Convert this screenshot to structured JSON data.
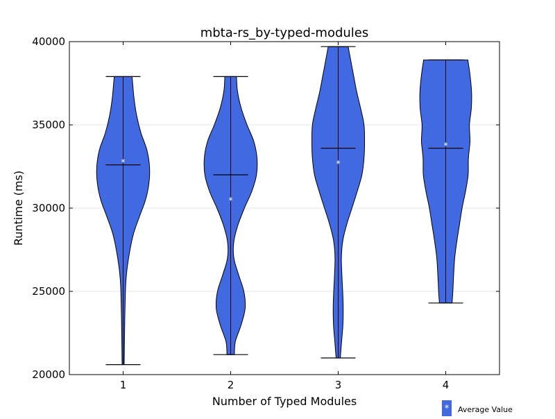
{
  "chart_data": {
    "type": "violin",
    "title": "mbta-rs_by-typed-modules",
    "xlabel": "Number of Typed Modules",
    "ylabel": "Runtime (ms)",
    "ylim": [
      20000,
      40000
    ],
    "yticks": [
      20000,
      25000,
      30000,
      35000,
      40000
    ],
    "grid": "horizontal",
    "categories": [
      "1",
      "2",
      "3",
      "4"
    ],
    "fill_color": "#4169e1",
    "edge_color": "#000000",
    "legend": {
      "label": "Average Value",
      "marker": "*",
      "placement": "bottom-right, outside plot"
    },
    "violins": [
      {
        "category": "1",
        "min": 20600,
        "max": 37900,
        "median": 32600,
        "mean": 32800,
        "density": [
          [
            20600,
            0.04
          ],
          [
            22000,
            0.05
          ],
          [
            24000,
            0.07
          ],
          [
            25500,
            0.1
          ],
          [
            26500,
            0.16
          ],
          [
            27500,
            0.26
          ],
          [
            28500,
            0.4
          ],
          [
            29500,
            0.62
          ],
          [
            30500,
            0.85
          ],
          [
            31500,
            0.98
          ],
          [
            32500,
            1.0
          ],
          [
            33500,
            0.9
          ],
          [
            34500,
            0.68
          ],
          [
            35500,
            0.52
          ],
          [
            36500,
            0.42
          ],
          [
            37500,
            0.36
          ],
          [
            37900,
            0.34
          ]
        ]
      },
      {
        "category": "2",
        "min": 21200,
        "max": 37900,
        "median": 32000,
        "mean": 30500,
        "density": [
          [
            21200,
            0.14
          ],
          [
            22000,
            0.18
          ],
          [
            23000,
            0.4
          ],
          [
            24000,
            0.55
          ],
          [
            25000,
            0.5
          ],
          [
            26000,
            0.3
          ],
          [
            27000,
            0.12
          ],
          [
            28000,
            0.12
          ],
          [
            29000,
            0.28
          ],
          [
            30000,
            0.52
          ],
          [
            31000,
            0.8
          ],
          [
            32000,
            0.98
          ],
          [
            33000,
            1.0
          ],
          [
            34000,
            0.88
          ],
          [
            35000,
            0.62
          ],
          [
            36000,
            0.4
          ],
          [
            37000,
            0.26
          ],
          [
            37900,
            0.22
          ]
        ]
      },
      {
        "category": "3",
        "min": 21000,
        "max": 39700,
        "median": 33600,
        "mean": 32700,
        "density": [
          [
            21000,
            0.08
          ],
          [
            22000,
            0.13
          ],
          [
            23000,
            0.18
          ],
          [
            24000,
            0.19
          ],
          [
            25000,
            0.17
          ],
          [
            26000,
            0.14
          ],
          [
            27000,
            0.12
          ],
          [
            28000,
            0.17
          ],
          [
            29000,
            0.32
          ],
          [
            30000,
            0.52
          ],
          [
            31000,
            0.72
          ],
          [
            32000,
            0.9
          ],
          [
            33000,
            0.98
          ],
          [
            34000,
            1.0
          ],
          [
            35000,
            0.98
          ],
          [
            36000,
            0.85
          ],
          [
            37000,
            0.7
          ],
          [
            38000,
            0.58
          ],
          [
            39000,
            0.46
          ],
          [
            39700,
            0.38
          ]
        ]
      },
      {
        "category": "4",
        "min": 24300,
        "max": 38900,
        "median": 33600,
        "mean": 33800,
        "density": [
          [
            24300,
            0.24
          ],
          [
            25000,
            0.27
          ],
          [
            26000,
            0.3
          ],
          [
            27000,
            0.34
          ],
          [
            28000,
            0.42
          ],
          [
            29000,
            0.52
          ],
          [
            30000,
            0.62
          ],
          [
            31000,
            0.75
          ],
          [
            32000,
            0.85
          ],
          [
            33000,
            0.86
          ],
          [
            34000,
            0.92
          ],
          [
            35000,
            0.9
          ],
          [
            36000,
            0.97
          ],
          [
            37000,
            0.98
          ],
          [
            38000,
            0.92
          ],
          [
            38900,
            0.84
          ]
        ]
      }
    ]
  }
}
